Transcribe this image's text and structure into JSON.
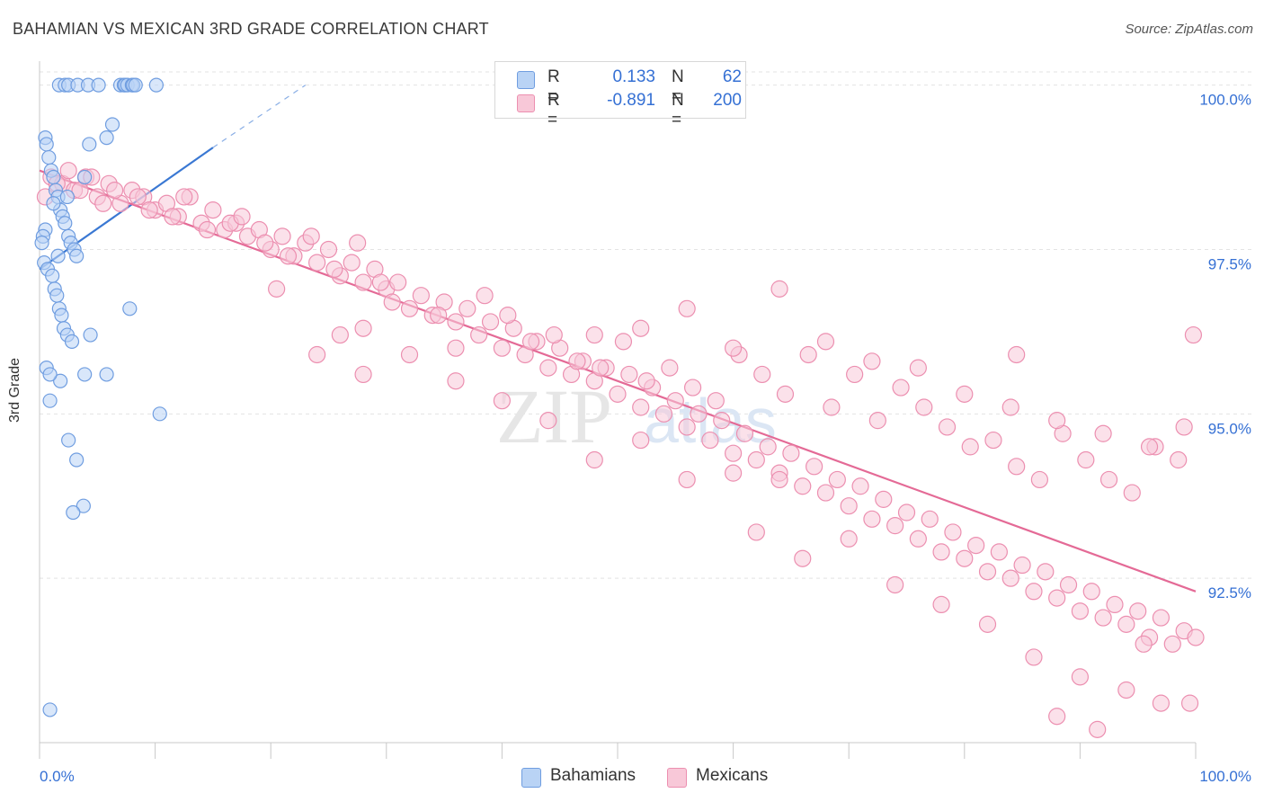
{
  "title": "BAHAMIAN VS MEXICAN 3RD GRADE CORRELATION CHART",
  "source": "Source: ZipAtlas.com",
  "legend_top": [
    {
      "r_label": "R =",
      "r_value": "0.133",
      "n_label": "N =",
      "n_value": "62",
      "color": "#5b8fd6"
    },
    {
      "r_label": "R =",
      "r_value": "-0.891",
      "n_label": "N =",
      "n_value": "200",
      "color": "#e97aa0"
    }
  ],
  "legend_bottom": [
    "Bahamians",
    "Mexicans"
  ],
  "colors": {
    "bahamian_fill": "#b9d3f5",
    "bahamian_stroke": "#6f9de0",
    "bahamian_line": "#3a78d3",
    "mexican_fill": "#f8c8d8",
    "mexican_stroke": "#ec8fb0",
    "mexican_line": "#e46a96",
    "grid": "#e3e3e3",
    "tick_label": "#3570d4"
  },
  "chart_data": {
    "type": "scatter",
    "title": "BAHAMIAN VS MEXICAN 3RD GRADE CORRELATION CHART",
    "xlabel": "",
    "ylabel": "3rd Grade",
    "xlim": [
      0,
      100
    ],
    "ylim": [
      90.0,
      100.2
    ],
    "x_tick_labels": [
      "0.0%",
      "100.0%"
    ],
    "y_ticks": [
      92.5,
      95.0,
      97.5,
      100.0
    ],
    "y_tick_labels": [
      "92.5%",
      "95.0%",
      "97.5%",
      "100.0%"
    ],
    "grid": true,
    "legend_position": "top-center and bottom",
    "watermark": "ZIPatlas",
    "series": [
      {
        "name": "Bahamians",
        "R": 0.133,
        "N": 62,
        "trend": {
          "x": [
            0,
            15
          ],
          "y": [
            97.2,
            99.05
          ],
          "extension_to": [
            23,
            100.0
          ]
        },
        "points": [
          [
            1.7,
            100
          ],
          [
            2.2,
            100
          ],
          [
            2.5,
            100
          ],
          [
            3.3,
            100
          ],
          [
            4.2,
            100
          ],
          [
            5.1,
            100
          ],
          [
            7.0,
            100
          ],
          [
            7.3,
            100
          ],
          [
            7.4,
            100
          ],
          [
            7.6,
            100
          ],
          [
            8.0,
            100
          ],
          [
            8.1,
            100
          ],
          [
            8.3,
            100
          ],
          [
            10.1,
            100
          ],
          [
            0.5,
            99.2
          ],
          [
            0.6,
            99.1
          ],
          [
            0.8,
            98.9
          ],
          [
            1.0,
            98.7
          ],
          [
            1.2,
            98.6
          ],
          [
            1.4,
            98.4
          ],
          [
            1.6,
            98.3
          ],
          [
            1.8,
            98.1
          ],
          [
            2.0,
            98.0
          ],
          [
            2.2,
            97.9
          ],
          [
            2.5,
            97.7
          ],
          [
            2.7,
            97.6
          ],
          [
            3.0,
            97.5
          ],
          [
            3.2,
            97.4
          ],
          [
            0.4,
            97.3
          ],
          [
            0.7,
            97.2
          ],
          [
            1.1,
            97.1
          ],
          [
            1.3,
            96.9
          ],
          [
            1.5,
            96.8
          ],
          [
            1.7,
            96.6
          ],
          [
            1.9,
            96.5
          ],
          [
            2.1,
            96.3
          ],
          [
            2.4,
            96.2
          ],
          [
            2.8,
            96.1
          ],
          [
            0.6,
            95.7
          ],
          [
            1.8,
            95.5
          ],
          [
            0.9,
            95.6
          ],
          [
            3.9,
            95.6
          ],
          [
            7.8,
            96.6
          ],
          [
            10.4,
            95.0
          ],
          [
            2.5,
            94.6
          ],
          [
            3.2,
            94.3
          ],
          [
            3.8,
            93.6
          ],
          [
            2.9,
            93.5
          ],
          [
            0.9,
            90.5
          ],
          [
            5.8,
            99.2
          ],
          [
            6.3,
            99.4
          ],
          [
            4.3,
            99.1
          ],
          [
            3.9,
            98.6
          ],
          [
            2.4,
            98.3
          ],
          [
            1.2,
            98.2
          ],
          [
            0.5,
            97.8
          ],
          [
            0.3,
            97.7
          ],
          [
            0.2,
            97.6
          ],
          [
            1.6,
            97.4
          ],
          [
            4.4,
            96.2
          ],
          [
            5.8,
            95.6
          ],
          [
            0.9,
            95.2
          ]
        ]
      },
      {
        "name": "Mexicans",
        "R": -0.891,
        "N": 200,
        "trend": {
          "x": [
            0,
            100
          ],
          "y": [
            98.7,
            92.3
          ]
        },
        "points": [
          [
            1.0,
            98.6
          ],
          [
            2.0,
            98.5
          ],
          [
            3.0,
            98.4
          ],
          [
            4.0,
            98.6
          ],
          [
            5.0,
            98.3
          ],
          [
            6.0,
            98.5
          ],
          [
            7.0,
            98.2
          ],
          [
            8.0,
            98.4
          ],
          [
            9.0,
            98.3
          ],
          [
            10.0,
            98.1
          ],
          [
            11.0,
            98.2
          ],
          [
            12.0,
            98.0
          ],
          [
            13.0,
            98.3
          ],
          [
            14.0,
            97.9
          ],
          [
            15.0,
            98.1
          ],
          [
            16.0,
            97.8
          ],
          [
            17.0,
            97.9
          ],
          [
            18.0,
            97.7
          ],
          [
            19.0,
            97.8
          ],
          [
            20.0,
            97.5
          ],
          [
            21.0,
            97.7
          ],
          [
            22.0,
            97.4
          ],
          [
            23.0,
            97.6
          ],
          [
            24.0,
            97.3
          ],
          [
            25.0,
            97.5
          ],
          [
            26.0,
            97.1
          ],
          [
            27.0,
            97.3
          ],
          [
            28.0,
            97.0
          ],
          [
            29.0,
            97.2
          ],
          [
            30.0,
            96.9
          ],
          [
            31.0,
            97.0
          ],
          [
            32.0,
            96.6
          ],
          [
            33.0,
            96.8
          ],
          [
            34.0,
            96.5
          ],
          [
            35.0,
            96.7
          ],
          [
            36.0,
            96.4
          ],
          [
            37.0,
            96.6
          ],
          [
            38.0,
            96.2
          ],
          [
            39.0,
            96.4
          ],
          [
            40.0,
            96.0
          ],
          [
            41.0,
            96.3
          ],
          [
            42.0,
            95.9
          ],
          [
            43.0,
            96.1
          ],
          [
            44.0,
            95.7
          ],
          [
            45.0,
            96.0
          ],
          [
            46.0,
            95.6
          ],
          [
            47.0,
            95.8
          ],
          [
            48.0,
            95.5
          ],
          [
            49.0,
            95.7
          ],
          [
            50.0,
            95.3
          ],
          [
            51.0,
            95.6
          ],
          [
            52.0,
            95.1
          ],
          [
            53.0,
            95.4
          ],
          [
            54.0,
            95.0
          ],
          [
            55.0,
            95.2
          ],
          [
            56.0,
            94.8
          ],
          [
            57.0,
            95.0
          ],
          [
            58.0,
            94.6
          ],
          [
            59.0,
            94.9
          ],
          [
            60.0,
            94.4
          ],
          [
            61.0,
            94.7
          ],
          [
            62.0,
            94.3
          ],
          [
            63.0,
            94.5
          ],
          [
            64.0,
            94.1
          ],
          [
            65.0,
            94.4
          ],
          [
            66.0,
            93.9
          ],
          [
            67.0,
            94.2
          ],
          [
            68.0,
            93.8
          ],
          [
            69.0,
            94.0
          ],
          [
            70.0,
            93.6
          ],
          [
            71.0,
            93.9
          ],
          [
            72.0,
            93.4
          ],
          [
            73.0,
            93.7
          ],
          [
            74.0,
            93.3
          ],
          [
            75.0,
            93.5
          ],
          [
            76.0,
            93.1
          ],
          [
            77.0,
            93.4
          ],
          [
            78.0,
            92.9
          ],
          [
            79.0,
            93.2
          ],
          [
            80.0,
            92.8
          ],
          [
            81.0,
            93.0
          ],
          [
            82.0,
            92.6
          ],
          [
            83.0,
            92.9
          ],
          [
            84.0,
            92.5
          ],
          [
            85.0,
            92.7
          ],
          [
            86.0,
            92.3
          ],
          [
            87.0,
            92.6
          ],
          [
            88.0,
            92.2
          ],
          [
            89.0,
            92.4
          ],
          [
            90.0,
            92.0
          ],
          [
            91.0,
            92.3
          ],
          [
            92.0,
            91.9
          ],
          [
            93.0,
            92.1
          ],
          [
            94.0,
            91.8
          ],
          [
            95.0,
            92.0
          ],
          [
            96.0,
            91.6
          ],
          [
            97.0,
            91.9
          ],
          [
            98.0,
            91.5
          ],
          [
            99.0,
            91.7
          ],
          [
            100.0,
            91.6
          ],
          [
            0.5,
            98.3
          ],
          [
            1.5,
            98.5
          ],
          [
            2.5,
            98.7
          ],
          [
            3.5,
            98.4
          ],
          [
            4.5,
            98.6
          ],
          [
            5.5,
            98.2
          ],
          [
            6.5,
            98.4
          ],
          [
            8.5,
            98.3
          ],
          [
            9.5,
            98.1
          ],
          [
            11.5,
            98.0
          ],
          [
            12.5,
            98.3
          ],
          [
            14.5,
            97.8
          ],
          [
            16.5,
            97.9
          ],
          [
            17.5,
            98.0
          ],
          [
            19.5,
            97.6
          ],
          [
            21.5,
            97.4
          ],
          [
            23.5,
            97.7
          ],
          [
            25.5,
            97.2
          ],
          [
            27.5,
            97.6
          ],
          [
            29.5,
            97.0
          ],
          [
            20.5,
            96.9
          ],
          [
            26.0,
            96.2
          ],
          [
            28.0,
            96.3
          ],
          [
            30.5,
            96.7
          ],
          [
            34.5,
            96.5
          ],
          [
            38.5,
            96.8
          ],
          [
            36.0,
            96.0
          ],
          [
            40.5,
            96.5
          ],
          [
            42.5,
            96.1
          ],
          [
            44.5,
            96.2
          ],
          [
            46.5,
            95.8
          ],
          [
            48.5,
            95.7
          ],
          [
            50.5,
            96.1
          ],
          [
            52.5,
            95.5
          ],
          [
            54.5,
            95.7
          ],
          [
            56.5,
            95.4
          ],
          [
            58.5,
            95.2
          ],
          [
            60.5,
            95.9
          ],
          [
            62.5,
            95.6
          ],
          [
            64.5,
            95.3
          ],
          [
            66.5,
            95.9
          ],
          [
            68.5,
            95.1
          ],
          [
            70.5,
            95.6
          ],
          [
            72.5,
            94.9
          ],
          [
            74.5,
            95.4
          ],
          [
            76.5,
            95.1
          ],
          [
            78.5,
            94.8
          ],
          [
            80.5,
            94.5
          ],
          [
            82.5,
            94.6
          ],
          [
            84.5,
            94.2
          ],
          [
            86.5,
            94.0
          ],
          [
            88.5,
            94.7
          ],
          [
            90.5,
            94.3
          ],
          [
            92.5,
            94.0
          ],
          [
            94.5,
            93.8
          ],
          [
            96.5,
            94.5
          ],
          [
            98.5,
            94.3
          ],
          [
            64.0,
            94.0
          ],
          [
            60.0,
            94.1
          ],
          [
            56.0,
            94.0
          ],
          [
            52.0,
            94.6
          ],
          [
            48.0,
            94.3
          ],
          [
            44.0,
            94.9
          ],
          [
            40.0,
            95.2
          ],
          [
            36.0,
            95.5
          ],
          [
            32.0,
            95.9
          ],
          [
            28.0,
            95.6
          ],
          [
            24.0,
            95.9
          ],
          [
            48.0,
            96.2
          ],
          [
            52.0,
            96.3
          ],
          [
            56.0,
            96.6
          ],
          [
            60.0,
            96.0
          ],
          [
            64.0,
            96.9
          ],
          [
            68.0,
            96.1
          ],
          [
            72.0,
            95.8
          ],
          [
            76.0,
            95.7
          ],
          [
            80.0,
            95.3
          ],
          [
            84.0,
            95.1
          ],
          [
            88.0,
            94.9
          ],
          [
            92.0,
            94.7
          ],
          [
            96.0,
            94.5
          ],
          [
            99.0,
            94.8
          ],
          [
            62.0,
            93.2
          ],
          [
            66.0,
            92.8
          ],
          [
            70.0,
            93.1
          ],
          [
            74.0,
            92.4
          ],
          [
            78.0,
            92.1
          ],
          [
            82.0,
            91.8
          ],
          [
            86.0,
            91.3
          ],
          [
            90.0,
            91.0
          ],
          [
            94.0,
            90.8
          ],
          [
            97.0,
            90.6
          ],
          [
            88.0,
            90.4
          ],
          [
            91.5,
            90.2
          ],
          [
            99.5,
            90.6
          ],
          [
            95.5,
            91.5
          ],
          [
            99.8,
            96.2
          ],
          [
            84.5,
            95.9
          ]
        ]
      }
    ]
  }
}
